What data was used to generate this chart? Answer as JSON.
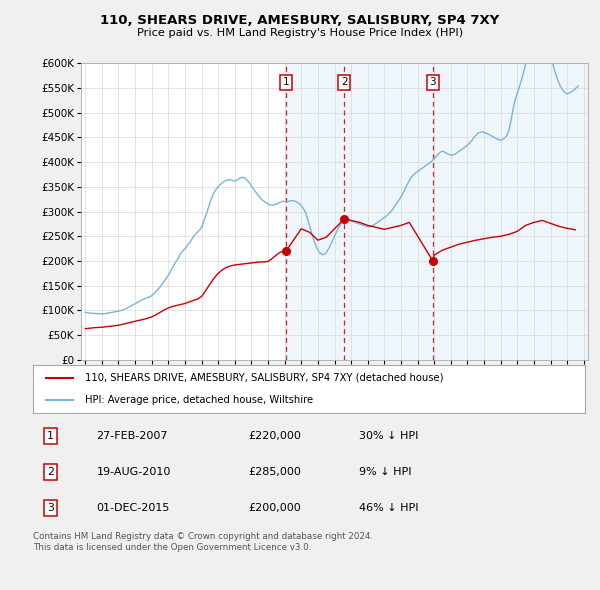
{
  "title": "110, SHEARS DRIVE, AMESBURY, SALISBURY, SP4 7XY",
  "subtitle": "Price paid vs. HM Land Registry's House Price Index (HPI)",
  "ytick_values": [
    0,
    50000,
    100000,
    150000,
    200000,
    250000,
    300000,
    350000,
    400000,
    450000,
    500000,
    550000,
    600000
  ],
  "legend_line1": "110, SHEARS DRIVE, AMESBURY, SALISBURY, SP4 7XY (detached house)",
  "legend_line2": "HPI: Average price, detached house, Wiltshire",
  "sale1_date": "27-FEB-2007",
  "sale1_price_str": "£220,000",
  "sale1_hpi_str": "30% ↓ HPI",
  "sale2_date": "19-AUG-2010",
  "sale2_price_str": "£285,000",
  "sale2_hpi_str": "9% ↓ HPI",
  "sale3_date": "01-DEC-2015",
  "sale3_price_str": "£200,000",
  "sale3_hpi_str": "46% ↓ HPI",
  "copyright_text": "Contains HM Land Registry data © Crown copyright and database right 2024.\nThis data is licensed under the Open Government Licence v3.0.",
  "hpi_color": "#7ab4d8",
  "price_color": "#cc0000",
  "vline_color": "#cc0000",
  "bg_color": "#f0f0f0",
  "plot_bg": "#ffffff",
  "hpi_data_years": [
    1995.0,
    1995.083,
    1995.167,
    1995.25,
    1995.333,
    1995.417,
    1995.5,
    1995.583,
    1995.667,
    1995.75,
    1995.833,
    1995.917,
    1996.0,
    1996.083,
    1996.167,
    1996.25,
    1996.333,
    1996.417,
    1996.5,
    1996.583,
    1996.667,
    1996.75,
    1996.833,
    1996.917,
    1997.0,
    1997.083,
    1997.167,
    1997.25,
    1997.333,
    1997.417,
    1997.5,
    1997.583,
    1997.667,
    1997.75,
    1997.833,
    1997.917,
    1998.0,
    1998.083,
    1998.167,
    1998.25,
    1998.333,
    1998.417,
    1998.5,
    1998.583,
    1998.667,
    1998.75,
    1998.833,
    1998.917,
    1999.0,
    1999.083,
    1999.167,
    1999.25,
    1999.333,
    1999.417,
    1999.5,
    1999.583,
    1999.667,
    1999.75,
    1999.833,
    1999.917,
    2000.0,
    2000.083,
    2000.167,
    2000.25,
    2000.333,
    2000.417,
    2000.5,
    2000.583,
    2000.667,
    2000.75,
    2000.833,
    2000.917,
    2001.0,
    2001.083,
    2001.167,
    2001.25,
    2001.333,
    2001.417,
    2001.5,
    2001.583,
    2001.667,
    2001.75,
    2001.833,
    2001.917,
    2002.0,
    2002.083,
    2002.167,
    2002.25,
    2002.333,
    2002.417,
    2002.5,
    2002.583,
    2002.667,
    2002.75,
    2002.833,
    2002.917,
    2003.0,
    2003.083,
    2003.167,
    2003.25,
    2003.333,
    2003.417,
    2003.5,
    2003.583,
    2003.667,
    2003.75,
    2003.833,
    2003.917,
    2004.0,
    2004.083,
    2004.167,
    2004.25,
    2004.333,
    2004.417,
    2004.5,
    2004.583,
    2004.667,
    2004.75,
    2004.833,
    2004.917,
    2005.0,
    2005.083,
    2005.167,
    2005.25,
    2005.333,
    2005.417,
    2005.5,
    2005.583,
    2005.667,
    2005.75,
    2005.833,
    2005.917,
    2006.0,
    2006.083,
    2006.167,
    2006.25,
    2006.333,
    2006.417,
    2006.5,
    2006.583,
    2006.667,
    2006.75,
    2006.833,
    2006.917,
    2007.0,
    2007.083,
    2007.167,
    2007.25,
    2007.333,
    2007.417,
    2007.5,
    2007.583,
    2007.667,
    2007.75,
    2007.833,
    2007.917,
    2008.0,
    2008.083,
    2008.167,
    2008.25,
    2008.333,
    2008.417,
    2008.5,
    2008.583,
    2008.667,
    2008.75,
    2008.833,
    2008.917,
    2009.0,
    2009.083,
    2009.167,
    2009.25,
    2009.333,
    2009.417,
    2009.5,
    2009.583,
    2009.667,
    2009.75,
    2009.833,
    2009.917,
    2010.0,
    2010.083,
    2010.167,
    2010.25,
    2010.333,
    2010.417,
    2010.5,
    2010.583,
    2010.667,
    2010.75,
    2010.833,
    2010.917,
    2011.0,
    2011.083,
    2011.167,
    2011.25,
    2011.333,
    2011.417,
    2011.5,
    2011.583,
    2011.667,
    2011.75,
    2011.833,
    2011.917,
    2012.0,
    2012.083,
    2012.167,
    2012.25,
    2012.333,
    2012.417,
    2012.5,
    2012.583,
    2012.667,
    2012.75,
    2012.833,
    2012.917,
    2013.0,
    2013.083,
    2013.167,
    2013.25,
    2013.333,
    2013.417,
    2013.5,
    2013.583,
    2013.667,
    2013.75,
    2013.833,
    2013.917,
    2014.0,
    2014.083,
    2014.167,
    2014.25,
    2014.333,
    2014.417,
    2014.5,
    2014.583,
    2014.667,
    2014.75,
    2014.833,
    2014.917,
    2015.0,
    2015.083,
    2015.167,
    2015.25,
    2015.333,
    2015.417,
    2015.5,
    2015.583,
    2015.667,
    2015.75,
    2015.833,
    2015.917,
    2016.0,
    2016.083,
    2016.167,
    2016.25,
    2016.333,
    2016.417,
    2016.5,
    2016.583,
    2016.667,
    2016.75,
    2016.833,
    2016.917,
    2017.0,
    2017.083,
    2017.167,
    2017.25,
    2017.333,
    2017.417,
    2017.5,
    2017.583,
    2017.667,
    2017.75,
    2017.833,
    2017.917,
    2018.0,
    2018.083,
    2018.167,
    2018.25,
    2018.333,
    2018.417,
    2018.5,
    2018.583,
    2018.667,
    2018.75,
    2018.833,
    2018.917,
    2019.0,
    2019.083,
    2019.167,
    2019.25,
    2019.333,
    2019.417,
    2019.5,
    2019.583,
    2019.667,
    2019.75,
    2019.833,
    2019.917,
    2020.0,
    2020.083,
    2020.167,
    2020.25,
    2020.333,
    2020.417,
    2020.5,
    2020.583,
    2020.667,
    2020.75,
    2020.833,
    2020.917,
    2021.0,
    2021.083,
    2021.167,
    2021.25,
    2021.333,
    2021.417,
    2021.5,
    2021.583,
    2021.667,
    2021.75,
    2021.833,
    2021.917,
    2022.0,
    2022.083,
    2022.167,
    2022.25,
    2022.333,
    2022.417,
    2022.5,
    2022.583,
    2022.667,
    2022.75,
    2022.833,
    2022.917,
    2023.0,
    2023.083,
    2023.167,
    2023.25,
    2023.333,
    2023.417,
    2023.5,
    2023.583,
    2023.667,
    2023.75,
    2023.833,
    2023.917,
    2024.0,
    2024.083,
    2024.167,
    2024.25,
    2024.333,
    2024.417,
    2024.5,
    2024.583,
    2024.667
  ],
  "hpi_values": [
    96000,
    95500,
    95200,
    94800,
    94500,
    94200,
    94000,
    93800,
    93600,
    93400,
    93200,
    93000,
    93000,
    93200,
    93500,
    94000,
    94500,
    95000,
    95500,
    96000,
    96500,
    97000,
    97500,
    98000,
    98500,
    99000,
    100000,
    101000,
    102000,
    103000,
    104500,
    106000,
    107500,
    109000,
    110500,
    112000,
    113500,
    115000,
    116500,
    118000,
    119500,
    121000,
    122500,
    124000,
    125000,
    126000,
    127000,
    128000,
    130000,
    132000,
    135000,
    138000,
    141000,
    144000,
    147000,
    151000,
    155000,
    159000,
    163000,
    167000,
    171000,
    176000,
    181000,
    186000,
    191000,
    196000,
    200000,
    205000,
    210000,
    215000,
    219000,
    222000,
    225000,
    228000,
    232000,
    236000,
    240000,
    244000,
    248000,
    252000,
    255000,
    258000,
    261000,
    264000,
    268000,
    275000,
    283000,
    291000,
    299000,
    308000,
    317000,
    325000,
    332000,
    338000,
    343000,
    347000,
    350000,
    353000,
    356000,
    358000,
    360000,
    362000,
    363000,
    364000,
    364000,
    364000,
    363000,
    362000,
    362000,
    363000,
    364000,
    366000,
    368000,
    369000,
    369000,
    368000,
    366000,
    363000,
    360000,
    356000,
    352000,
    348000,
    344000,
    340000,
    336000,
    332000,
    329000,
    326000,
    323000,
    321000,
    319000,
    317000,
    315000,
    314000,
    313000,
    313000,
    313000,
    314000,
    315000,
    316000,
    318000,
    319000,
    320000,
    321000,
    320000,
    320000,
    320000,
    321000,
    321000,
    322000,
    322000,
    321000,
    320000,
    319000,
    317000,
    315000,
    312000,
    308000,
    304000,
    298000,
    290000,
    281000,
    271000,
    261000,
    252000,
    243000,
    235000,
    228000,
    222000,
    218000,
    215000,
    213000,
    213000,
    214000,
    217000,
    221000,
    226000,
    232000,
    238000,
    244000,
    250000,
    256000,
    262000,
    267000,
    272000,
    276000,
    279000,
    281000,
    282000,
    282000,
    282000,
    282000,
    281000,
    280000,
    279000,
    278000,
    277000,
    276000,
    275000,
    274000,
    273000,
    272000,
    271000,
    270000,
    269000,
    269000,
    270000,
    271000,
    272000,
    274000,
    276000,
    278000,
    280000,
    282000,
    284000,
    286000,
    288000,
    290000,
    292000,
    295000,
    298000,
    301000,
    305000,
    309000,
    313000,
    317000,
    321000,
    325000,
    330000,
    335000,
    340000,
    346000,
    352000,
    357000,
    362000,
    367000,
    371000,
    374000,
    377000,
    379000,
    381000,
    383000,
    385000,
    387000,
    389000,
    391000,
    393000,
    395000,
    397000,
    399000,
    401000,
    404000,
    407000,
    410000,
    413000,
    416000,
    419000,
    421000,
    422000,
    421000,
    419000,
    418000,
    416000,
    415000,
    414000,
    414000,
    415000,
    416000,
    418000,
    420000,
    422000,
    424000,
    426000,
    428000,
    430000,
    432000,
    434000,
    437000,
    440000,
    443000,
    447000,
    451000,
    454000,
    457000,
    459000,
    460000,
    461000,
    461000,
    460000,
    459000,
    458000,
    456000,
    455000,
    453000,
    452000,
    450000,
    449000,
    447000,
    446000,
    445000,
    444000,
    445000,
    447000,
    449000,
    452000,
    457000,
    465000,
    478000,
    493000,
    508000,
    521000,
    531000,
    540000,
    548000,
    557000,
    566000,
    576000,
    587000,
    598000,
    609000,
    617000,
    623000,
    628000,
    631000,
    635000,
    640000,
    646000,
    651000,
    655000,
    657000,
    656000,
    653000,
    648000,
    641000,
    633000,
    624000,
    614000,
    604000,
    594000,
    584000,
    575000,
    567000,
    560000,
    554000,
    549000,
    545000,
    541000,
    539000,
    538000,
    539000,
    540000,
    542000,
    544000,
    546000,
    549000,
    551000,
    554000
  ],
  "price_data_years": [
    1995.0,
    1995.25,
    1995.5,
    1995.75,
    1996.0,
    1996.25,
    1996.5,
    1996.75,
    1997.0,
    1997.25,
    1997.5,
    1997.75,
    1998.0,
    1998.25,
    1998.5,
    1998.75,
    1999.0,
    1999.25,
    1999.5,
    1999.75,
    2000.0,
    2000.25,
    2000.5,
    2000.75,
    2001.0,
    2001.25,
    2001.5,
    2001.75,
    2002.0,
    2002.25,
    2002.5,
    2002.75,
    2003.0,
    2003.25,
    2003.5,
    2003.75,
    2004.0,
    2004.25,
    2004.5,
    2004.75,
    2005.0,
    2005.25,
    2005.5,
    2005.75,
    2006.0,
    2006.25,
    2006.5,
    2006.75,
    2007.083,
    2008.0,
    2008.5,
    2009.0,
    2009.5,
    2010.583,
    2011.0,
    2011.5,
    2012.0,
    2012.5,
    2013.0,
    2013.5,
    2014.0,
    2014.5,
    2015.917,
    2016.0,
    2016.5,
    2017.0,
    2017.5,
    2018.0,
    2018.5,
    2019.0,
    2019.5,
    2020.0,
    2020.5,
    2021.0,
    2021.5,
    2022.0,
    2022.5,
    2023.0,
    2023.5,
    2024.0,
    2024.5
  ],
  "price_values": [
    63000,
    64000,
    65000,
    65500,
    66000,
    67000,
    68000,
    69000,
    70000,
    72000,
    74000,
    76000,
    78000,
    80000,
    82000,
    84000,
    87000,
    91000,
    96000,
    101000,
    105000,
    108000,
    110000,
    112000,
    114000,
    117000,
    120000,
    123000,
    128000,
    140000,
    153000,
    165000,
    175000,
    182000,
    187000,
    190000,
    192000,
    193000,
    194000,
    195000,
    196000,
    197000,
    198000,
    198000,
    199000,
    205000,
    212000,
    218000,
    220000,
    265000,
    258000,
    242000,
    248000,
    285000,
    282000,
    278000,
    272000,
    268000,
    264000,
    268000,
    272000,
    278000,
    200000,
    212000,
    222000,
    228000,
    234000,
    238000,
    242000,
    245000,
    248000,
    250000,
    254000,
    260000,
    272000,
    278000,
    282000,
    276000,
    270000,
    266000,
    263000
  ],
  "sale_points": [
    {
      "year": 2007.083,
      "price": 220000,
      "label": "1"
    },
    {
      "year": 2010.583,
      "price": 285000,
      "label": "2"
    },
    {
      "year": 2015.917,
      "price": 200000,
      "label": "3"
    }
  ],
  "xtick_years": [
    1995,
    1996,
    1997,
    1998,
    1999,
    2000,
    2001,
    2002,
    2003,
    2004,
    2005,
    2006,
    2007,
    2008,
    2009,
    2010,
    2011,
    2012,
    2013,
    2014,
    2015,
    2016,
    2017,
    2018,
    2019,
    2020,
    2021,
    2022,
    2023,
    2024,
    2025
  ]
}
